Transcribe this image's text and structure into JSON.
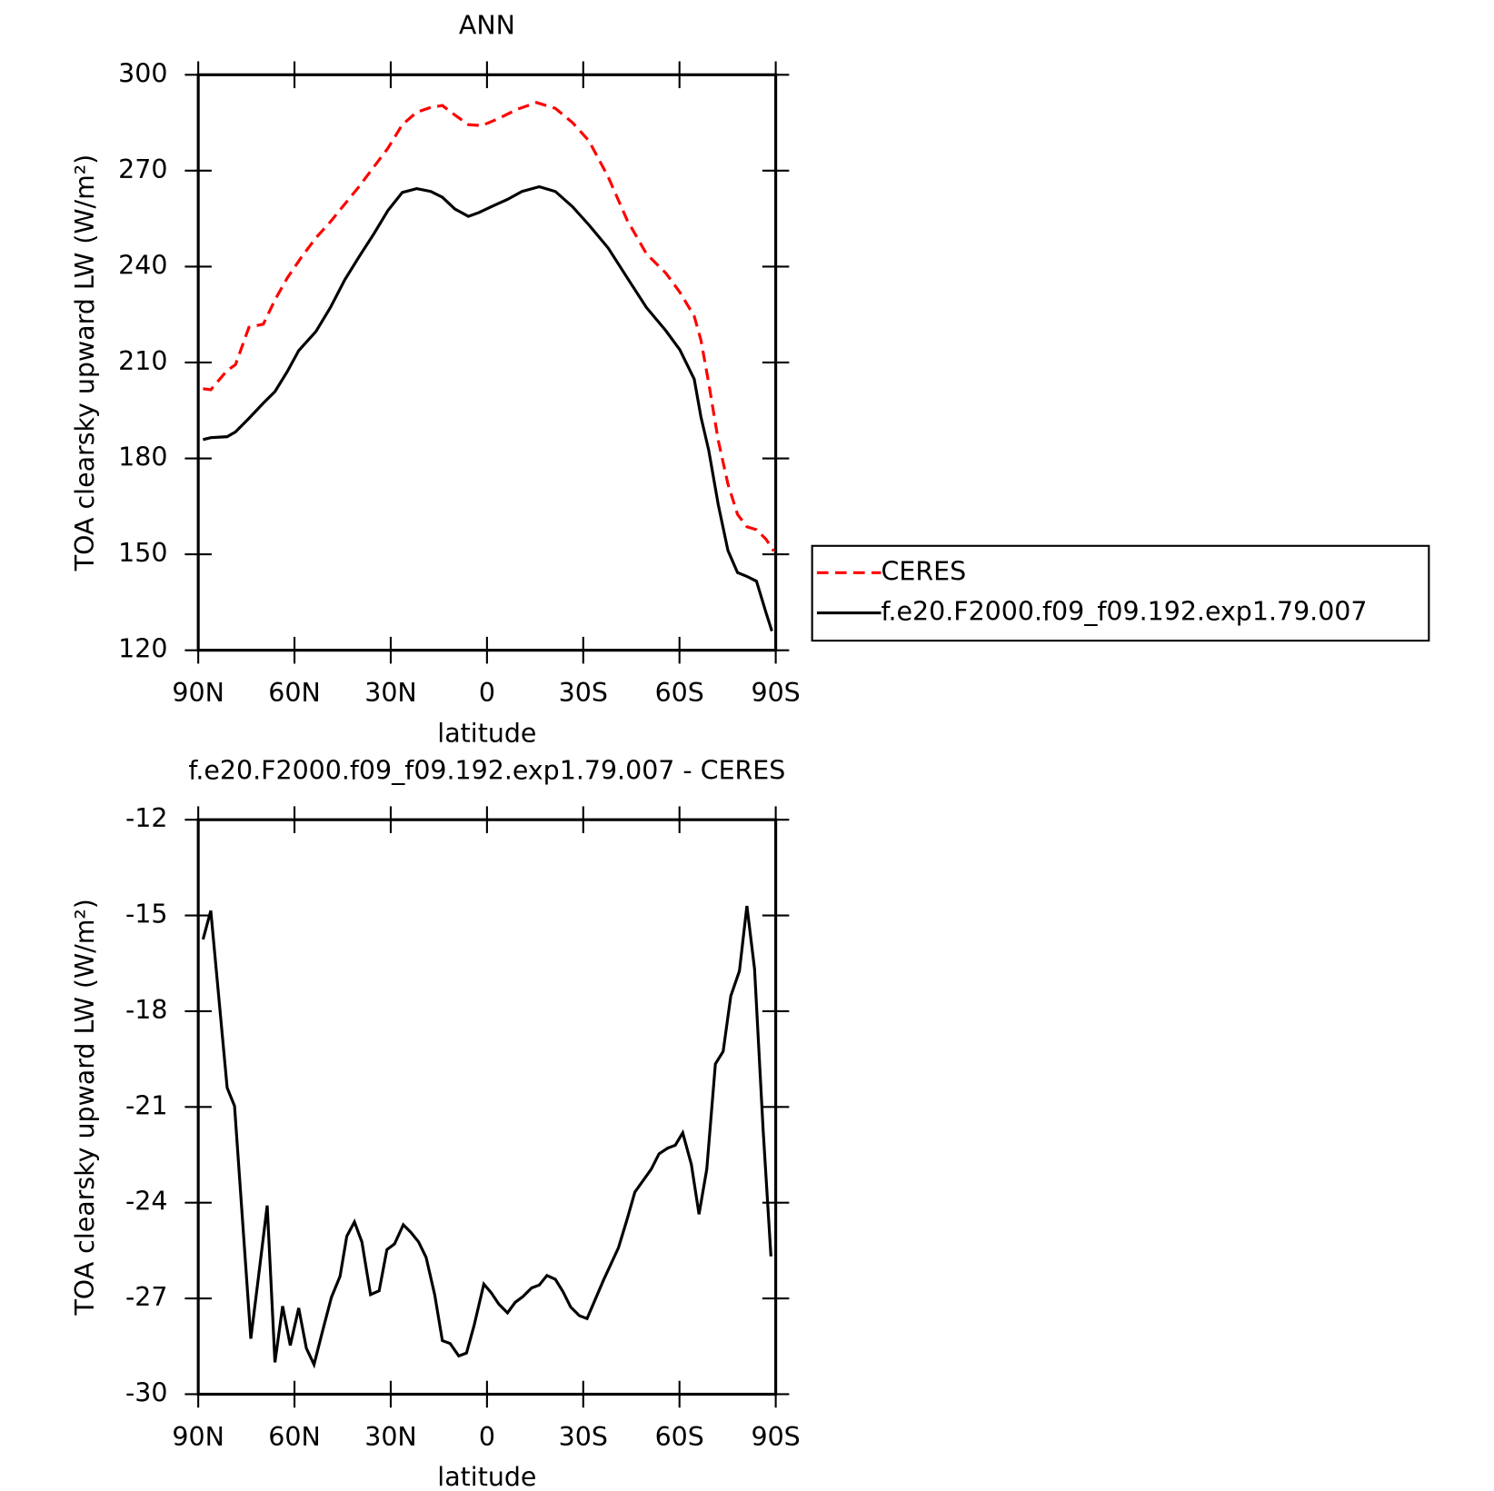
{
  "chart_data": [
    {
      "type": "line",
      "title": "ANN",
      "xlabel": "latitude",
      "ylabel": "TOA clearsky upward LW (W/m²)",
      "xlim": [
        90,
        -90
      ],
      "xticks": [
        {
          "value": 90,
          "label": "90N"
        },
        {
          "value": 60,
          "label": "60N"
        },
        {
          "value": 30,
          "label": "30N"
        },
        0,
        {
          "value": -30,
          "label": "30S"
        },
        {
          "value": -60,
          "label": "60S"
        },
        {
          "value": -90,
          "label": "90S"
        }
      ],
      "ylim": [
        120,
        300
      ],
      "yticks": [
        120,
        150,
        180,
        210,
        240,
        270,
        300
      ],
      "legend": "right",
      "series": [
        {
          "name": "CERES",
          "color": "#ff0000",
          "line_style": "dashed",
          "x": [
            88.5,
            86.1,
            81.0,
            78.4,
            74.2,
            69.7,
            66.1,
            62.2,
            57.8,
            53.3,
            48.8,
            44.3,
            39.9,
            35.4,
            30.9,
            26.4,
            21.9,
            17.5,
            13.9,
            10.0,
            5.8,
            1.6,
            -3.4,
            -9.4,
            -15.4,
            -21.3,
            -26.7,
            -31.8,
            -37.8,
            -43.7,
            -49.7,
            -55.7,
            -60.1,
            -64.6,
            -66.7,
            -69.1,
            -72.1,
            -75.1,
            -78.1,
            -81.0,
            -84.0,
            -87.0,
            -89.4
          ],
          "values": [
            201.8,
            201.5,
            207.5,
            209.3,
            221,
            222,
            229.6,
            236.5,
            243,
            249,
            254,
            259.6,
            265,
            271,
            277,
            284.4,
            288.3,
            289.8,
            290.4,
            287.4,
            284.4,
            284.1,
            286.2,
            289.2,
            291.3,
            289.5,
            285,
            279.3,
            268,
            254.5,
            244,
            238,
            232,
            224.5,
            217,
            203.6,
            185.6,
            172,
            162.5,
            158.6,
            157.7,
            154.7,
            151
          ]
        },
        {
          "name": "f.e20.F2000.f09_f09.192.exp1.79.007",
          "color": "#000000",
          "line_style": "solid",
          "x": [
            88.5,
            86.1,
            81.0,
            78.4,
            74.2,
            69.7,
            66.1,
            62.2,
            58.7,
            53.3,
            48.8,
            44.3,
            39.9,
            35.4,
            30.9,
            26.4,
            21.9,
            17.5,
            13.9,
            10.0,
            5.8,
            2.5,
            -1.9,
            -6.4,
            -10.9,
            -16.3,
            -21.3,
            -26.7,
            -31.8,
            -37.8,
            -43.7,
            -49.7,
            -55.7,
            -60.1,
            -64.6,
            -66.7,
            -69.1,
            -72.1,
            -75.1,
            -78.1,
            -81.0,
            -84.0,
            -87.0,
            -88.8
          ],
          "values": [
            185.9,
            186.5,
            186.8,
            188.3,
            192.5,
            197.3,
            200.9,
            207.2,
            213.7,
            219.7,
            227.2,
            235.9,
            243,
            250,
            257.5,
            263.2,
            264.4,
            263.5,
            261.7,
            258,
            255.7,
            256.9,
            259,
            261,
            263.5,
            265,
            263.5,
            258.7,
            253,
            245.8,
            236.5,
            227.2,
            220,
            214,
            204.8,
            193,
            182.6,
            165.5,
            151.2,
            144.3,
            143.1,
            141.6,
            131.7,
            126
          ]
        }
      ]
    },
    {
      "type": "line",
      "title": "f.e20.F2000.f09_f09.192.exp1.79.007 - CERES",
      "xlabel": "latitude",
      "ylabel": "TOA clearsky upward LW (W/m²)",
      "xlim": [
        90,
        -90
      ],
      "xticks": [
        {
          "value": 90,
          "label": "90N"
        },
        {
          "value": 60,
          "label": "60N"
        },
        {
          "value": 30,
          "label": "30N"
        },
        0,
        {
          "value": -30,
          "label": "30S"
        },
        {
          "value": -60,
          "label": "60S"
        },
        {
          "value": -90,
          "label": "90S"
        }
      ],
      "ylim": [
        -30,
        -12
      ],
      "yticks": [
        -30,
        -27,
        -24,
        -21,
        -18,
        -15,
        -12
      ],
      "series": [
        {
          "color": "#000000",
          "line_style": "solid",
          "x": [
            88.5,
            86.1,
            81.0,
            78.7,
            73.6,
            71.2,
            68.5,
            66.1,
            63.7,
            61.3,
            58.7,
            56.3,
            53.9,
            51.2,
            48.5,
            45.8,
            43.7,
            41.3,
            39.0,
            36.3,
            33.6,
            31.2,
            28.8,
            26.1,
            23.7,
            21.3,
            19.0,
            16.3,
            13.9,
            11.5,
            8.8,
            6.4,
            4.0,
            1.0,
            -1.3,
            -3.7,
            -6.4,
            -8.8,
            -11.2,
            -13.9,
            -16.3,
            -18.7,
            -21.3,
            -23.7,
            -26.1,
            -28.8,
            -31.2,
            -36.3,
            -41.0,
            -43.7,
            -46.1,
            -51.2,
            -53.6,
            -56.3,
            -58.7,
            -61.0,
            -63.7,
            -66.1,
            -68.5,
            -71.2,
            -73.6,
            -76.0,
            -78.7,
            -81.0,
            -83.4,
            -86.1,
            -88.5
          ],
          "values": [
            -15.75,
            -14.85,
            -20.4,
            -20.97,
            -28.26,
            -26.3,
            -24.09,
            -29.0,
            -27.24,
            -28.47,
            -27.3,
            -28.56,
            -29.07,
            -28.0,
            -26.97,
            -26.3,
            -25.05,
            -24.6,
            -25.23,
            -26.88,
            -26.76,
            -25.47,
            -25.29,
            -24.69,
            -24.93,
            -25.23,
            -25.71,
            -26.88,
            -28.32,
            -28.41,
            -28.8,
            -28.71,
            -27.84,
            -26.55,
            -26.82,
            -27.18,
            -27.45,
            -27.12,
            -26.94,
            -26.67,
            -26.58,
            -26.28,
            -26.4,
            -26.79,
            -27.27,
            -27.54,
            -27.63,
            -26.43,
            -25.41,
            -24.51,
            -23.67,
            -22.95,
            -22.47,
            -22.29,
            -22.2,
            -21.81,
            -22.8,
            -24.36,
            -22.95,
            -19.65,
            -19.26,
            -17.52,
            -16.74,
            -14.7,
            -16.68,
            -21.75,
            -25.68
          ]
        }
      ]
    }
  ]
}
